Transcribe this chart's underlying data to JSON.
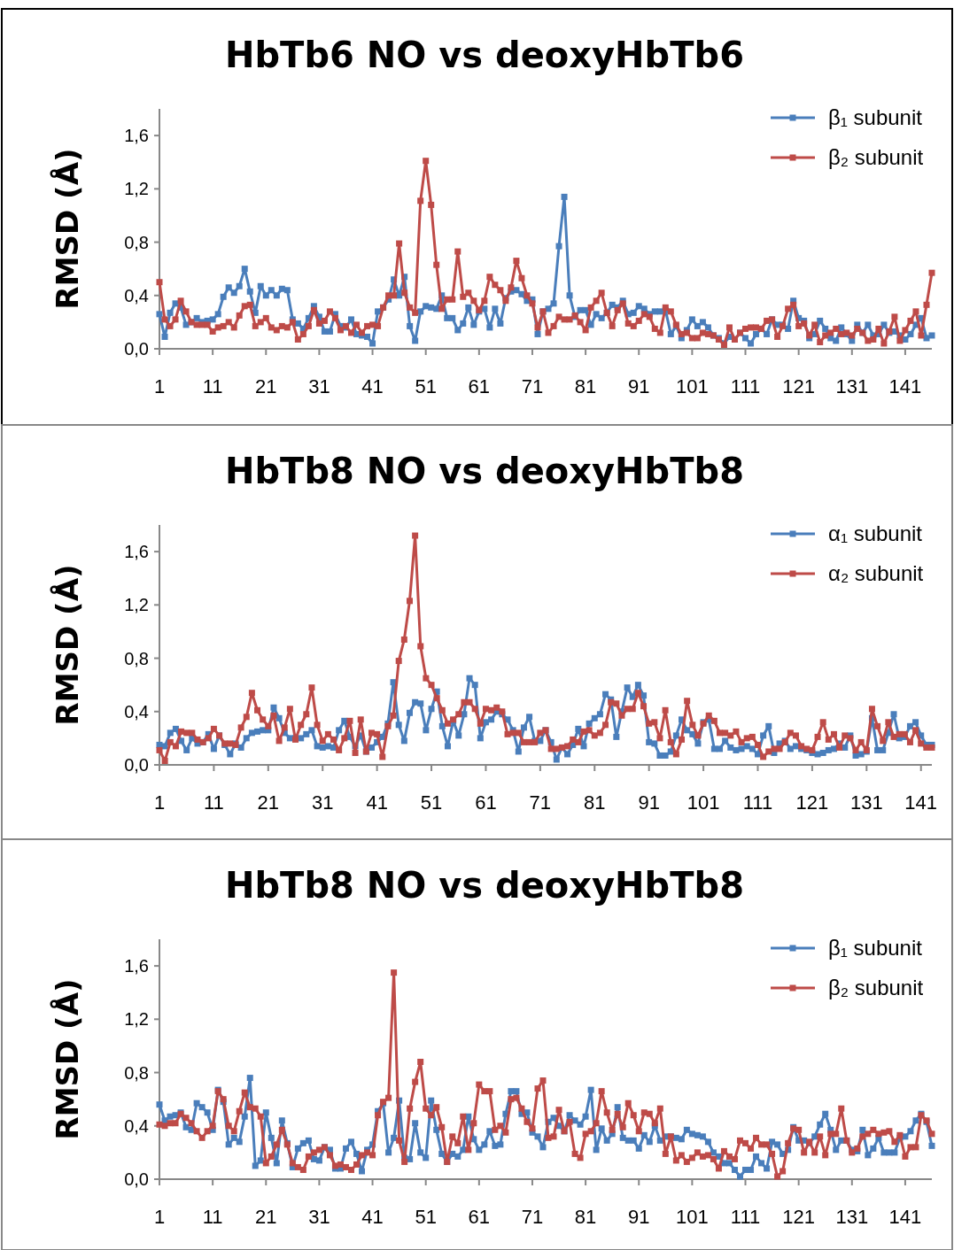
{
  "chart_data": [
    {
      "type": "line",
      "title": "HbTb6 NO vs deoxyHbTb6",
      "ylabel": "RMSD (Å)",
      "legend": "top right",
      "marker": "square",
      "tick_labels": true,
      "x": [
        1,
        2,
        3,
        4,
        5,
        6,
        7,
        8,
        9,
        10,
        11,
        12,
        13,
        14,
        15,
        16,
        17,
        18,
        19,
        20,
        21,
        22,
        23,
        24,
        25,
        26,
        27,
        28,
        29,
        30,
        31,
        32,
        33,
        34,
        35,
        36,
        37,
        38,
        39,
        40,
        41,
        42,
        43,
        44,
        45,
        46,
        47,
        48,
        49,
        50,
        51,
        52,
        53,
        54,
        55,
        56,
        57,
        58,
        59,
        60,
        61,
        62,
        63,
        64,
        65,
        66,
        67,
        68,
        69,
        70,
        71,
        72,
        73,
        74,
        75,
        76,
        77,
        78,
        79,
        80,
        81,
        82,
        83,
        84,
        85,
        86,
        87,
        88,
        89,
        90,
        91,
        92,
        93,
        94,
        95,
        96,
        97,
        98,
        99,
        100,
        101,
        102,
        103,
        104,
        105,
        106,
        107,
        108,
        109,
        110,
        111,
        112,
        113,
        114,
        115,
        116,
        117,
        118,
        119,
        120,
        121,
        122,
        123,
        124,
        125,
        126,
        127,
        128,
        129,
        130,
        131,
        132,
        133,
        134,
        135,
        136,
        137,
        138,
        139,
        140,
        141,
        142,
        143,
        144,
        145,
        146
      ],
      "xlim": [
        1,
        146
      ],
      "xticks": [
        1,
        11,
        21,
        31,
        41,
        51,
        61,
        71,
        81,
        91,
        101,
        111,
        121,
        131,
        141
      ],
      "ylim": [
        0,
        1.8
      ],
      "yticks": [
        {
          "value": 0,
          "label": "0,0"
        },
        {
          "value": 0.4,
          "label": "0,4"
        },
        {
          "value": 0.8,
          "label": "0,8"
        },
        {
          "value": 1.2,
          "label": "1,2"
        },
        {
          "value": 1.6,
          "label": "1,6"
        }
      ],
      "series": [
        {
          "name": "β₁ subunit",
          "color": "#4a7ebb",
          "values": [
            0.26,
            0.09,
            0.27,
            0.34,
            0.31,
            0.18,
            0.2,
            0.23,
            0.2,
            0.21,
            0.22,
            0.26,
            0.39,
            0.46,
            0.42,
            0.47,
            0.6,
            0.43,
            0.27,
            0.47,
            0.4,
            0.44,
            0.4,
            0.45,
            0.44,
            0.22,
            0.19,
            0.15,
            0.23,
            0.32,
            0.24,
            0.13,
            0.13,
            0.26,
            0.17,
            0.16,
            0.22,
            0.11,
            0.1,
            0.09,
            0.04,
            0.28,
            0.31,
            0.37,
            0.52,
            0.4,
            0.54,
            0.17,
            0.06,
            0.28,
            0.32,
            0.31,
            0.3,
            0.4,
            0.23,
            0.23,
            0.14,
            0.19,
            0.31,
            0.18,
            0.28,
            0.3,
            0.16,
            0.3,
            0.19,
            0.38,
            0.43,
            0.44,
            0.41,
            0.36,
            0.37,
            0.11,
            0.28,
            0.3,
            0.34,
            0.77,
            1.14,
            0.4,
            0.24,
            0.29,
            0.29,
            0.18,
            0.26,
            0.23,
            0.27,
            0.33,
            0.31,
            0.36,
            0.26,
            0.27,
            0.32,
            0.3,
            0.26,
            0.28,
            0.28,
            0.29,
            0.11,
            0.17,
            0.08,
            0.14,
            0.22,
            0.17,
            0.2,
            0.16,
            0.1,
            0.08,
            0.04,
            0.09,
            0.07,
            0.12,
            0.08,
            0.04,
            0.11,
            0.15,
            0.11,
            0.22,
            0.18,
            0.18,
            0.15,
            0.36,
            0.23,
            0.21,
            0.08,
            0.11,
            0.21,
            0.15,
            0.08,
            0.06,
            0.16,
            0.11,
            0.06,
            0.18,
            0.12,
            0.18,
            0.1,
            0.11,
            0.18,
            0.12,
            0.13,
            0.1,
            0.07,
            0.11,
            0.18,
            0.23,
            0.08,
            0.1
          ]
        },
        {
          "name": "β₂ subunit",
          "color": "#be4b48",
          "values": [
            0.5,
            0.22,
            0.17,
            0.22,
            0.36,
            0.28,
            0.2,
            0.18,
            0.18,
            0.18,
            0.13,
            0.16,
            0.17,
            0.2,
            0.16,
            0.25,
            0.32,
            0.33,
            0.17,
            0.2,
            0.23,
            0.16,
            0.14,
            0.17,
            0.16,
            0.2,
            0.07,
            0.11,
            0.17,
            0.29,
            0.19,
            0.21,
            0.28,
            0.23,
            0.14,
            0.17,
            0.12,
            0.18,
            0.12,
            0.17,
            0.18,
            0.17,
            0.31,
            0.4,
            0.4,
            0.79,
            0.42,
            0.31,
            0.27,
            1.11,
            1.41,
            1.08,
            0.63,
            0.3,
            0.37,
            0.37,
            0.73,
            0.39,
            0.42,
            0.36,
            0.29,
            0.36,
            0.54,
            0.48,
            0.44,
            0.36,
            0.46,
            0.66,
            0.53,
            0.4,
            0.34,
            0.16,
            0.28,
            0.12,
            0.17,
            0.24,
            0.22,
            0.22,
            0.25,
            0.2,
            0.14,
            0.31,
            0.36,
            0.42,
            0.27,
            0.17,
            0.29,
            0.34,
            0.19,
            0.17,
            0.21,
            0.26,
            0.24,
            0.15,
            0.12,
            0.31,
            0.28,
            0.18,
            0.11,
            0.12,
            0.08,
            0.08,
            0.12,
            0.11,
            0.1,
            0.07,
            0.03,
            0.16,
            0.07,
            0.12,
            0.15,
            0.16,
            0.16,
            0.15,
            0.21,
            0.22,
            0.09,
            0.17,
            0.3,
            0.33,
            0.17,
            0.19,
            0.1,
            0.18,
            0.05,
            0.1,
            0.12,
            0.15,
            0.11,
            0.12,
            0.1,
            0.15,
            0.12,
            0.06,
            0.07,
            0.15,
            0.04,
            0.13,
            0.24,
            0.06,
            0.14,
            0.21,
            0.28,
            0.1,
            0.33,
            0.57
          ]
        }
      ]
    },
    {
      "type": "line",
      "title": "HbTb8 NO vs deoxyHbTb8",
      "ylabel": "RMSD (Å)",
      "legend": "top right",
      "marker": "square",
      "tick_labels": true,
      "x": [
        1,
        2,
        3,
        4,
        5,
        6,
        7,
        8,
        9,
        10,
        11,
        12,
        13,
        14,
        15,
        16,
        17,
        18,
        19,
        20,
        21,
        22,
        23,
        24,
        25,
        26,
        27,
        28,
        29,
        30,
        31,
        32,
        33,
        34,
        35,
        36,
        37,
        38,
        39,
        40,
        41,
        42,
        43,
        44,
        45,
        46,
        47,
        48,
        49,
        50,
        51,
        52,
        53,
        54,
        55,
        56,
        57,
        58,
        59,
        60,
        61,
        62,
        63,
        64,
        65,
        66,
        67,
        68,
        69,
        70,
        71,
        72,
        73,
        74,
        75,
        76,
        77,
        78,
        79,
        80,
        81,
        82,
        83,
        84,
        85,
        86,
        87,
        88,
        89,
        90,
        91,
        92,
        93,
        94,
        95,
        96,
        97,
        98,
        99,
        100,
        101,
        102,
        103,
        104,
        105,
        106,
        107,
        108,
        109,
        110,
        111,
        112,
        113,
        114,
        115,
        116,
        117,
        118,
        119,
        120,
        121,
        122,
        123,
        124,
        125,
        126,
        127,
        128,
        129,
        130,
        131,
        132,
        133,
        134,
        135,
        136,
        137,
        138,
        139,
        140,
        141,
        142,
        143
      ],
      "xlim": [
        1,
        143
      ],
      "xticks": [
        1,
        11,
        21,
        31,
        41,
        51,
        61,
        71,
        81,
        91,
        101,
        111,
        121,
        131,
        141
      ],
      "ylim": [
        0,
        1.8
      ],
      "yticks": [
        {
          "value": 0,
          "label": "0,0"
        },
        {
          "value": 0.4,
          "label": "0,4"
        },
        {
          "value": 0.8,
          "label": "0,8"
        },
        {
          "value": 1.2,
          "label": "1,2"
        },
        {
          "value": 1.6,
          "label": "1,6"
        }
      ],
      "series": [
        {
          "name": "α₁ subunit",
          "color": "#4a7ebb",
          "values": [
            0.15,
            0.14,
            0.24,
            0.27,
            0.18,
            0.11,
            0.2,
            0.16,
            0.17,
            0.23,
            0.12,
            0.22,
            0.15,
            0.08,
            0.16,
            0.13,
            0.2,
            0.24,
            0.25,
            0.26,
            0.26,
            0.43,
            0.35,
            0.24,
            0.2,
            0.2,
            0.2,
            0.23,
            0.26,
            0.14,
            0.13,
            0.14,
            0.13,
            0.26,
            0.33,
            0.21,
            0.14,
            0.22,
            0.1,
            0.13,
            0.17,
            0.21,
            0.31,
            0.62,
            0.3,
            0.18,
            0.39,
            0.47,
            0.46,
            0.26,
            0.42,
            0.55,
            0.29,
            0.14,
            0.33,
            0.22,
            0.38,
            0.65,
            0.6,
            0.2,
            0.32,
            0.34,
            0.4,
            0.38,
            0.34,
            0.26,
            0.1,
            0.28,
            0.36,
            0.18,
            0.18,
            0.26,
            0.17,
            0.04,
            0.13,
            0.08,
            0.15,
            0.27,
            0.14,
            0.31,
            0.35,
            0.38,
            0.53,
            0.49,
            0.21,
            0.4,
            0.58,
            0.51,
            0.6,
            0.52,
            0.17,
            0.16,
            0.07,
            0.07,
            0.1,
            0.22,
            0.34,
            0.26,
            0.23,
            0.16,
            0.32,
            0.34,
            0.12,
            0.12,
            0.18,
            0.13,
            0.11,
            0.12,
            0.14,
            0.12,
            0.08,
            0.22,
            0.29,
            0.09,
            0.16,
            0.18,
            0.12,
            0.14,
            0.12,
            0.11,
            0.09,
            0.08,
            0.09,
            0.11,
            0.12,
            0.16,
            0.13,
            0.22,
            0.07,
            0.08,
            0.1,
            0.35,
            0.11,
            0.11,
            0.24,
            0.38,
            0.2,
            0.21,
            0.29,
            0.32,
            0.22,
            0.15,
            0.15
          ]
        },
        {
          "name": "α₂ subunit",
          "color": "#be4b48",
          "values": [
            0.11,
            0.03,
            0.17,
            0.14,
            0.25,
            0.24,
            0.24,
            0.19,
            0.17,
            0.2,
            0.27,
            0.22,
            0.16,
            0.16,
            0.15,
            0.28,
            0.36,
            0.54,
            0.41,
            0.34,
            0.29,
            0.37,
            0.18,
            0.28,
            0.42,
            0.19,
            0.3,
            0.38,
            0.58,
            0.3,
            0.18,
            0.23,
            0.19,
            0.11,
            0.2,
            0.33,
            0.09,
            0.34,
            0.1,
            0.24,
            0.23,
            0.06,
            0.29,
            0.37,
            0.78,
            0.94,
            1.23,
            1.72,
            0.89,
            0.65,
            0.6,
            0.5,
            0.41,
            0.31,
            0.34,
            0.38,
            0.47,
            0.47,
            0.42,
            0.31,
            0.42,
            0.41,
            0.43,
            0.4,
            0.23,
            0.24,
            0.24,
            0.17,
            0.17,
            0.17,
            0.24,
            0.26,
            0.12,
            0.12,
            0.13,
            0.14,
            0.19,
            0.17,
            0.25,
            0.26,
            0.22,
            0.24,
            0.3,
            0.47,
            0.46,
            0.37,
            0.42,
            0.42,
            0.54,
            0.44,
            0.31,
            0.32,
            0.2,
            0.41,
            0.17,
            0.08,
            0.19,
            0.48,
            0.3,
            0.22,
            0.31,
            0.37,
            0.33,
            0.24,
            0.24,
            0.22,
            0.25,
            0.17,
            0.2,
            0.21,
            0.15,
            0.06,
            0.1,
            0.12,
            0.12,
            0.17,
            0.24,
            0.22,
            0.14,
            0.12,
            0.11,
            0.21,
            0.32,
            0.19,
            0.23,
            0.13,
            0.22,
            0.2,
            0.11,
            0.17,
            0.11,
            0.42,
            0.29,
            0.18,
            0.32,
            0.21,
            0.23,
            0.23,
            0.17,
            0.26,
            0.16,
            0.13,
            0.13
          ]
        }
      ]
    },
    {
      "type": "line",
      "title": "HbTb8 NO vs deoxyHbTb8",
      "ylabel": "RMSD (Å)",
      "legend": "top right",
      "marker": "square",
      "tick_labels": true,
      "x": [
        1,
        2,
        3,
        4,
        5,
        6,
        7,
        8,
        9,
        10,
        11,
        12,
        13,
        14,
        15,
        16,
        17,
        18,
        19,
        20,
        21,
        22,
        23,
        24,
        25,
        26,
        27,
        28,
        29,
        30,
        31,
        32,
        33,
        34,
        35,
        36,
        37,
        38,
        39,
        40,
        41,
        42,
        43,
        44,
        45,
        46,
        47,
        48,
        49,
        50,
        51,
        52,
        53,
        54,
        55,
        56,
        57,
        58,
        59,
        60,
        61,
        62,
        63,
        64,
        65,
        66,
        67,
        68,
        69,
        70,
        71,
        72,
        73,
        74,
        75,
        76,
        77,
        78,
        79,
        80,
        81,
        82,
        83,
        84,
        85,
        86,
        87,
        88,
        89,
        90,
        91,
        92,
        93,
        94,
        95,
        96,
        97,
        98,
        99,
        100,
        101,
        102,
        103,
        104,
        105,
        106,
        107,
        108,
        109,
        110,
        111,
        112,
        113,
        114,
        115,
        116,
        117,
        118,
        119,
        120,
        121,
        122,
        123,
        124,
        125,
        126,
        127,
        128,
        129,
        130,
        131,
        132,
        133,
        134,
        135,
        136,
        137,
        138,
        139,
        140,
        141,
        142,
        143,
        144,
        145,
        146
      ],
      "xlim": [
        1,
        146
      ],
      "xticks": [
        1,
        11,
        21,
        31,
        41,
        51,
        61,
        71,
        81,
        91,
        101,
        111,
        121,
        131,
        141
      ],
      "ylim": [
        0,
        1.8
      ],
      "yticks": [
        {
          "value": 0,
          "label": "0,0"
        },
        {
          "value": 0.4,
          "label": "0,4"
        },
        {
          "value": 0.8,
          "label": "0,8"
        },
        {
          "value": 1.2,
          "label": "1,2"
        },
        {
          "value": 1.6,
          "label": "1,6"
        }
      ],
      "series": [
        {
          "name": "β₁ subunit",
          "color": "#4a7ebb",
          "values": [
            0.56,
            0.44,
            0.47,
            0.48,
            0.5,
            0.39,
            0.37,
            0.57,
            0.54,
            0.5,
            0.37,
            0.67,
            0.58,
            0.26,
            0.31,
            0.28,
            0.47,
            0.76,
            0.1,
            0.14,
            0.5,
            0.31,
            0.12,
            0.44,
            0.27,
            0.09,
            0.23,
            0.27,
            0.29,
            0.15,
            0.14,
            0.24,
            0.22,
            0.08,
            0.08,
            0.23,
            0.28,
            0.19,
            0.06,
            0.22,
            0.26,
            0.51,
            0.57,
            0.2,
            0.31,
            0.59,
            0.16,
            0.15,
            0.42,
            0.2,
            0.16,
            0.59,
            0.37,
            0.19,
            0.13,
            0.19,
            0.17,
            0.22,
            0.47,
            0.3,
            0.22,
            0.26,
            0.36,
            0.25,
            0.26,
            0.49,
            0.66,
            0.66,
            0.49,
            0.5,
            0.35,
            0.32,
            0.24,
            0.43,
            0.46,
            0.4,
            0.36,
            0.48,
            0.44,
            0.41,
            0.47,
            0.67,
            0.22,
            0.38,
            0.29,
            0.34,
            0.54,
            0.31,
            0.29,
            0.29,
            0.23,
            0.33,
            0.28,
            0.4,
            0.29,
            0.32,
            0.32,
            0.31,
            0.3,
            0.37,
            0.34,
            0.33,
            0.32,
            0.28,
            0.2,
            0.17,
            0.12,
            0.12,
            0.07,
            0.02,
            0.07,
            0.07,
            0.17,
            0.12,
            0.08,
            0.28,
            0.26,
            0.19,
            0.22,
            0.39,
            0.29,
            0.29,
            0.27,
            0.32,
            0.41,
            0.49,
            0.37,
            0.22,
            0.29,
            0.29,
            0.22,
            0.21,
            0.37,
            0.18,
            0.23,
            0.31,
            0.2,
            0.2,
            0.2,
            0.31,
            0.32,
            0.36,
            0.44,
            0.49,
            0.43,
            0.25
          ]
        },
        {
          "name": "β₂ subunit",
          "color": "#be4b48",
          "values": [
            0.41,
            0.4,
            0.42,
            0.42,
            0.49,
            0.46,
            0.42,
            0.36,
            0.31,
            0.36,
            0.4,
            0.66,
            0.6,
            0.4,
            0.36,
            0.51,
            0.65,
            0.54,
            0.53,
            0.47,
            0.12,
            0.17,
            0.26,
            0.37,
            0.26,
            0.12,
            0.09,
            0.07,
            0.17,
            0.2,
            0.22,
            0.24,
            0.18,
            0.1,
            0.11,
            0.09,
            0.07,
            0.11,
            0.18,
            0.2,
            0.18,
            0.48,
            0.58,
            0.61,
            1.55,
            0.29,
            0.13,
            0.53,
            0.73,
            0.88,
            0.53,
            0.48,
            0.54,
            0.39,
            0.13,
            0.32,
            0.27,
            0.47,
            0.22,
            0.42,
            0.71,
            0.66,
            0.66,
            0.37,
            0.4,
            0.35,
            0.6,
            0.61,
            0.53,
            0.43,
            0.38,
            0.68,
            0.74,
            0.31,
            0.32,
            0.52,
            0.36,
            0.43,
            0.19,
            0.16,
            0.34,
            0.36,
            0.42,
            0.66,
            0.5,
            0.37,
            0.49,
            0.39,
            0.57,
            0.48,
            0.36,
            0.5,
            0.49,
            0.42,
            0.53,
            0.19,
            0.32,
            0.14,
            0.18,
            0.13,
            0.16,
            0.2,
            0.17,
            0.18,
            0.15,
            0.08,
            0.21,
            0.17,
            0.15,
            0.29,
            0.27,
            0.23,
            0.31,
            0.26,
            0.26,
            0.19,
            0.02,
            0.06,
            0.27,
            0.38,
            0.37,
            0.2,
            0.28,
            0.2,
            0.32,
            0.18,
            0.34,
            0.34,
            0.53,
            0.29,
            0.2,
            0.23,
            0.32,
            0.34,
            0.37,
            0.34,
            0.35,
            0.36,
            0.28,
            0.33,
            0.17,
            0.24,
            0.24,
            0.48,
            0.44,
            0.34
          ]
        }
      ]
    }
  ]
}
